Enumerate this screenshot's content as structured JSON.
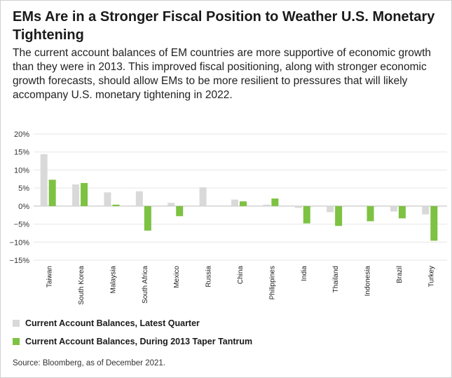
{
  "title": "EMs Are in a Stronger Fiscal Position to Weather U.S. Monetary Tightening",
  "subtitle": "The current account balances of EM countries are more supportive of economic growth than they were in 2013. This improved fiscal positioning, along with stronger economic growth forecasts, should allow EMs to be more resilient to pressures that will likely accompany U.S. monetary tightening in 2022.",
  "legend": [
    {
      "label": "Current Account Balances, Latest Quarter",
      "color": "#d9d9d9"
    },
    {
      "label": "Current Account Balances, During 2013 Taper Tantrum",
      "color": "#7dc242"
    }
  ],
  "source": "Source: Bloomberg, as of December 2021.",
  "chart_data": {
    "type": "bar",
    "categories": [
      "Taiwan",
      "South Korea",
      "Malaysia",
      "South Africa",
      "Mexico",
      "Russia",
      "China",
      "Philippines",
      "India",
      "Thailand",
      "Indonesia",
      "Brazil",
      "Turkey"
    ],
    "series": [
      {
        "name": "Current Account Balances, Latest Quarter",
        "color": "#d9d9d9",
        "values": [
          14.4,
          6.0,
          3.8,
          4.1,
          0.9,
          5.2,
          1.8,
          0.4,
          -0.5,
          -1.7,
          0.2,
          -1.5,
          -2.3
        ]
      },
      {
        "name": "Current Account Balances, During 2013 Taper Tantrum",
        "color": "#7dc242",
        "values": [
          7.3,
          6.4,
          0.4,
          -6.8,
          -2.8,
          0.0,
          1.3,
          2.1,
          -4.8,
          -5.5,
          -4.2,
          -3.4,
          -9.6
        ]
      }
    ],
    "ylim": [
      -15,
      20
    ],
    "yticks": [
      20,
      15,
      10,
      5,
      0,
      -5,
      -10,
      -15
    ],
    "ytick_labels": [
      "20%",
      "15%",
      "10%",
      "5%",
      "0%",
      "−5%",
      "−10%",
      "−15%"
    ],
    "grid": true,
    "legend_position": "bottom-left"
  }
}
